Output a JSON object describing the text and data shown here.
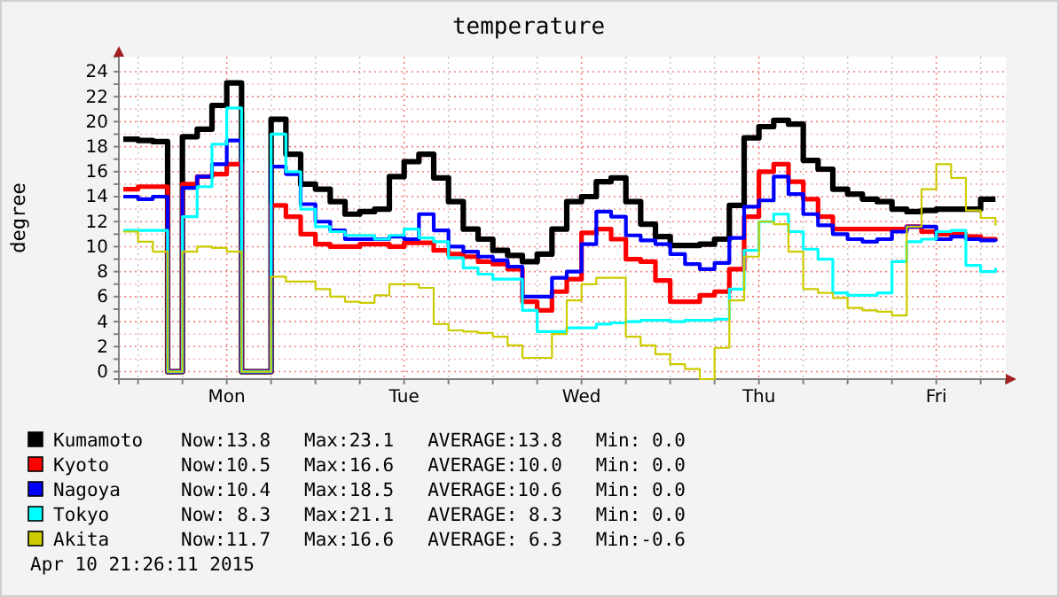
{
  "chart_data": {
    "type": "step",
    "title": "temperature",
    "ylabel": "degree",
    "categories": [
      null,
      null,
      null,
      null,
      null,
      null,
      null,
      "Mon",
      null,
      null,
      null,
      null,
      null,
      null,
      null,
      null,
      null,
      null,
      null,
      "Tue",
      null,
      null,
      null,
      null,
      null,
      null,
      null,
      null,
      null,
      null,
      null,
      "Wed",
      null,
      null,
      null,
      null,
      null,
      null,
      null,
      null,
      null,
      null,
      null,
      "Thu",
      null,
      null,
      null,
      null,
      null,
      null,
      null,
      null,
      null,
      null,
      null,
      "Fri",
      null,
      null,
      null,
      null
    ],
    "series": [
      {
        "name": "Kumamoto",
        "color": "#000000",
        "values": [
          18.6,
          18.5,
          18.4,
          0,
          18.8,
          19.4,
          21.3,
          23.1,
          0,
          0,
          20.2,
          17.4,
          15.0,
          14.6,
          13.6,
          12.6,
          12.8,
          13.0,
          15.6,
          16.8,
          17.4,
          15.5,
          13.6,
          11.4,
          10.6,
          9.7,
          9.3,
          8.8,
          9.4,
          11.4,
          13.6,
          14.0,
          15.2,
          15.5,
          13.6,
          11.8,
          10.8,
          10.1,
          10.1,
          10.2,
          10.6,
          13.3,
          18.7,
          19.6,
          20.1,
          19.8,
          16.9,
          16.2,
          14.6,
          14.2,
          13.8,
          13.6,
          13.0,
          12.8,
          12.9,
          13.0,
          13.0,
          13.0,
          13.8,
          13.8
        ]
      },
      {
        "name": "Kyoto",
        "color": "#ff0000",
        "values": [
          14.6,
          14.8,
          14.8,
          0,
          15.0,
          15.6,
          15.8,
          16.6,
          0,
          0,
          13.3,
          12.4,
          11.0,
          10.2,
          10.0,
          10.0,
          10.2,
          10.2,
          10.0,
          10.3,
          10.3,
          9.7,
          9.4,
          9.2,
          8.8,
          8.6,
          8.2,
          5.6,
          4.9,
          6.4,
          7.4,
          11.1,
          11.4,
          10.6,
          9.0,
          8.8,
          7.3,
          5.6,
          5.6,
          6.1,
          6.4,
          8.2,
          12.4,
          16.0,
          16.6,
          15.2,
          13.8,
          12.4,
          11.4,
          11.4,
          11.4,
          11.4,
          11.4,
          11.6,
          11.2,
          11.0,
          11.0,
          10.8,
          10.6,
          10.5
        ]
      },
      {
        "name": "Nagoya",
        "color": "#0000ff",
        "values": [
          14.0,
          13.8,
          14.0,
          0,
          14.7,
          15.6,
          16.6,
          18.5,
          0,
          0,
          16.4,
          15.8,
          13.4,
          12.0,
          11.3,
          10.6,
          10.6,
          10.6,
          10.8,
          10.6,
          12.6,
          11.3,
          10.0,
          9.6,
          9.2,
          8.9,
          8.4,
          6.0,
          6.0,
          7.5,
          8.0,
          10.2,
          12.8,
          12.4,
          10.9,
          10.5,
          10.2,
          9.4,
          8.6,
          8.2,
          8.7,
          10.7,
          13.2,
          13.7,
          15.6,
          14.2,
          12.6,
          11.7,
          11.0,
          10.6,
          10.4,
          10.6,
          11.2,
          11.6,
          11.6,
          10.6,
          10.8,
          10.6,
          10.5,
          10.4
        ]
      },
      {
        "name": "Tokyo",
        "color": "#00ffff",
        "values": [
          11.3,
          11.3,
          11.3,
          0,
          12.4,
          14.8,
          18.2,
          21.1,
          0,
          0,
          19.0,
          16.0,
          13.0,
          11.6,
          11.2,
          10.9,
          10.9,
          10.6,
          10.9,
          11.4,
          10.7,
          10.4,
          9.1,
          8.3,
          7.8,
          7.4,
          7.4,
          4.9,
          3.2,
          3.2,
          3.5,
          3.5,
          3.8,
          3.9,
          4.0,
          4.1,
          4.1,
          4.0,
          4.1,
          4.1,
          4.2,
          6.6,
          9.7,
          12.0,
          12.6,
          11.2,
          9.8,
          9.0,
          6.3,
          6.1,
          6.1,
          6.3,
          8.8,
          10.4,
          10.6,
          11.2,
          11.3,
          8.5,
          8.0,
          8.3
        ]
      },
      {
        "name": "Akita",
        "color": "#cccc00",
        "values": [
          11.2,
          10.4,
          9.6,
          0,
          9.6,
          10.0,
          9.9,
          9.6,
          0,
          0,
          7.6,
          7.2,
          7.2,
          6.6,
          6.0,
          5.6,
          5.5,
          6.1,
          7.0,
          7.0,
          6.7,
          3.8,
          3.3,
          3.2,
          3.1,
          2.8,
          2.1,
          1.1,
          1.1,
          3.0,
          5.7,
          7.0,
          7.5,
          7.5,
          2.8,
          2.1,
          1.4,
          0.6,
          0.2,
          -0.6,
          1.9,
          5.7,
          9.2,
          12.0,
          11.8,
          9.6,
          6.6,
          6.3,
          5.9,
          5.1,
          4.9,
          4.8,
          4.5,
          11.6,
          14.6,
          16.6,
          15.5,
          12.9,
          12.3,
          11.7
        ]
      }
    ],
    "ylim": [
      -0.6,
      25.2
    ],
    "yticks": [
      0,
      {
        "value": 1,
        "label": null
      },
      2,
      {
        "value": 3,
        "label": null
      },
      4,
      {
        "value": 5,
        "label": null
      },
      6,
      {
        "value": 7,
        "label": null
      },
      8,
      {
        "value": 9,
        "label": null
      },
      10,
      {
        "value": 11,
        "label": null
      },
      12,
      {
        "value": 13,
        "label": null
      },
      14,
      {
        "value": 15,
        "label": null
      },
      16,
      {
        "value": 17,
        "label": null
      },
      18,
      {
        "value": 19,
        "label": null
      },
      20,
      {
        "value": 21,
        "label": null
      },
      22,
      {
        "value": 23,
        "label": null
      },
      24
    ],
    "grid": true,
    "legend": "bottom",
    "annotations": [
      "Now:13.8   Max:23.1   AVERAGE:13.8   Min: 0.0",
      "Now:10.5   Max:16.6   AVERAGE:10.0   Min: 0.0",
      "Now:10.4   Max:18.5   AVERAGE:10.6   Min: 0.0",
      "Now: 8.3   Max:21.1   AVERAGE: 8.3   Min: 0.0",
      "Now:11.7   Max:16.6   AVERAGE: 6.3   Min:-0.6",
      "Apr 10 21:26:11 2015"
    ]
  }
}
